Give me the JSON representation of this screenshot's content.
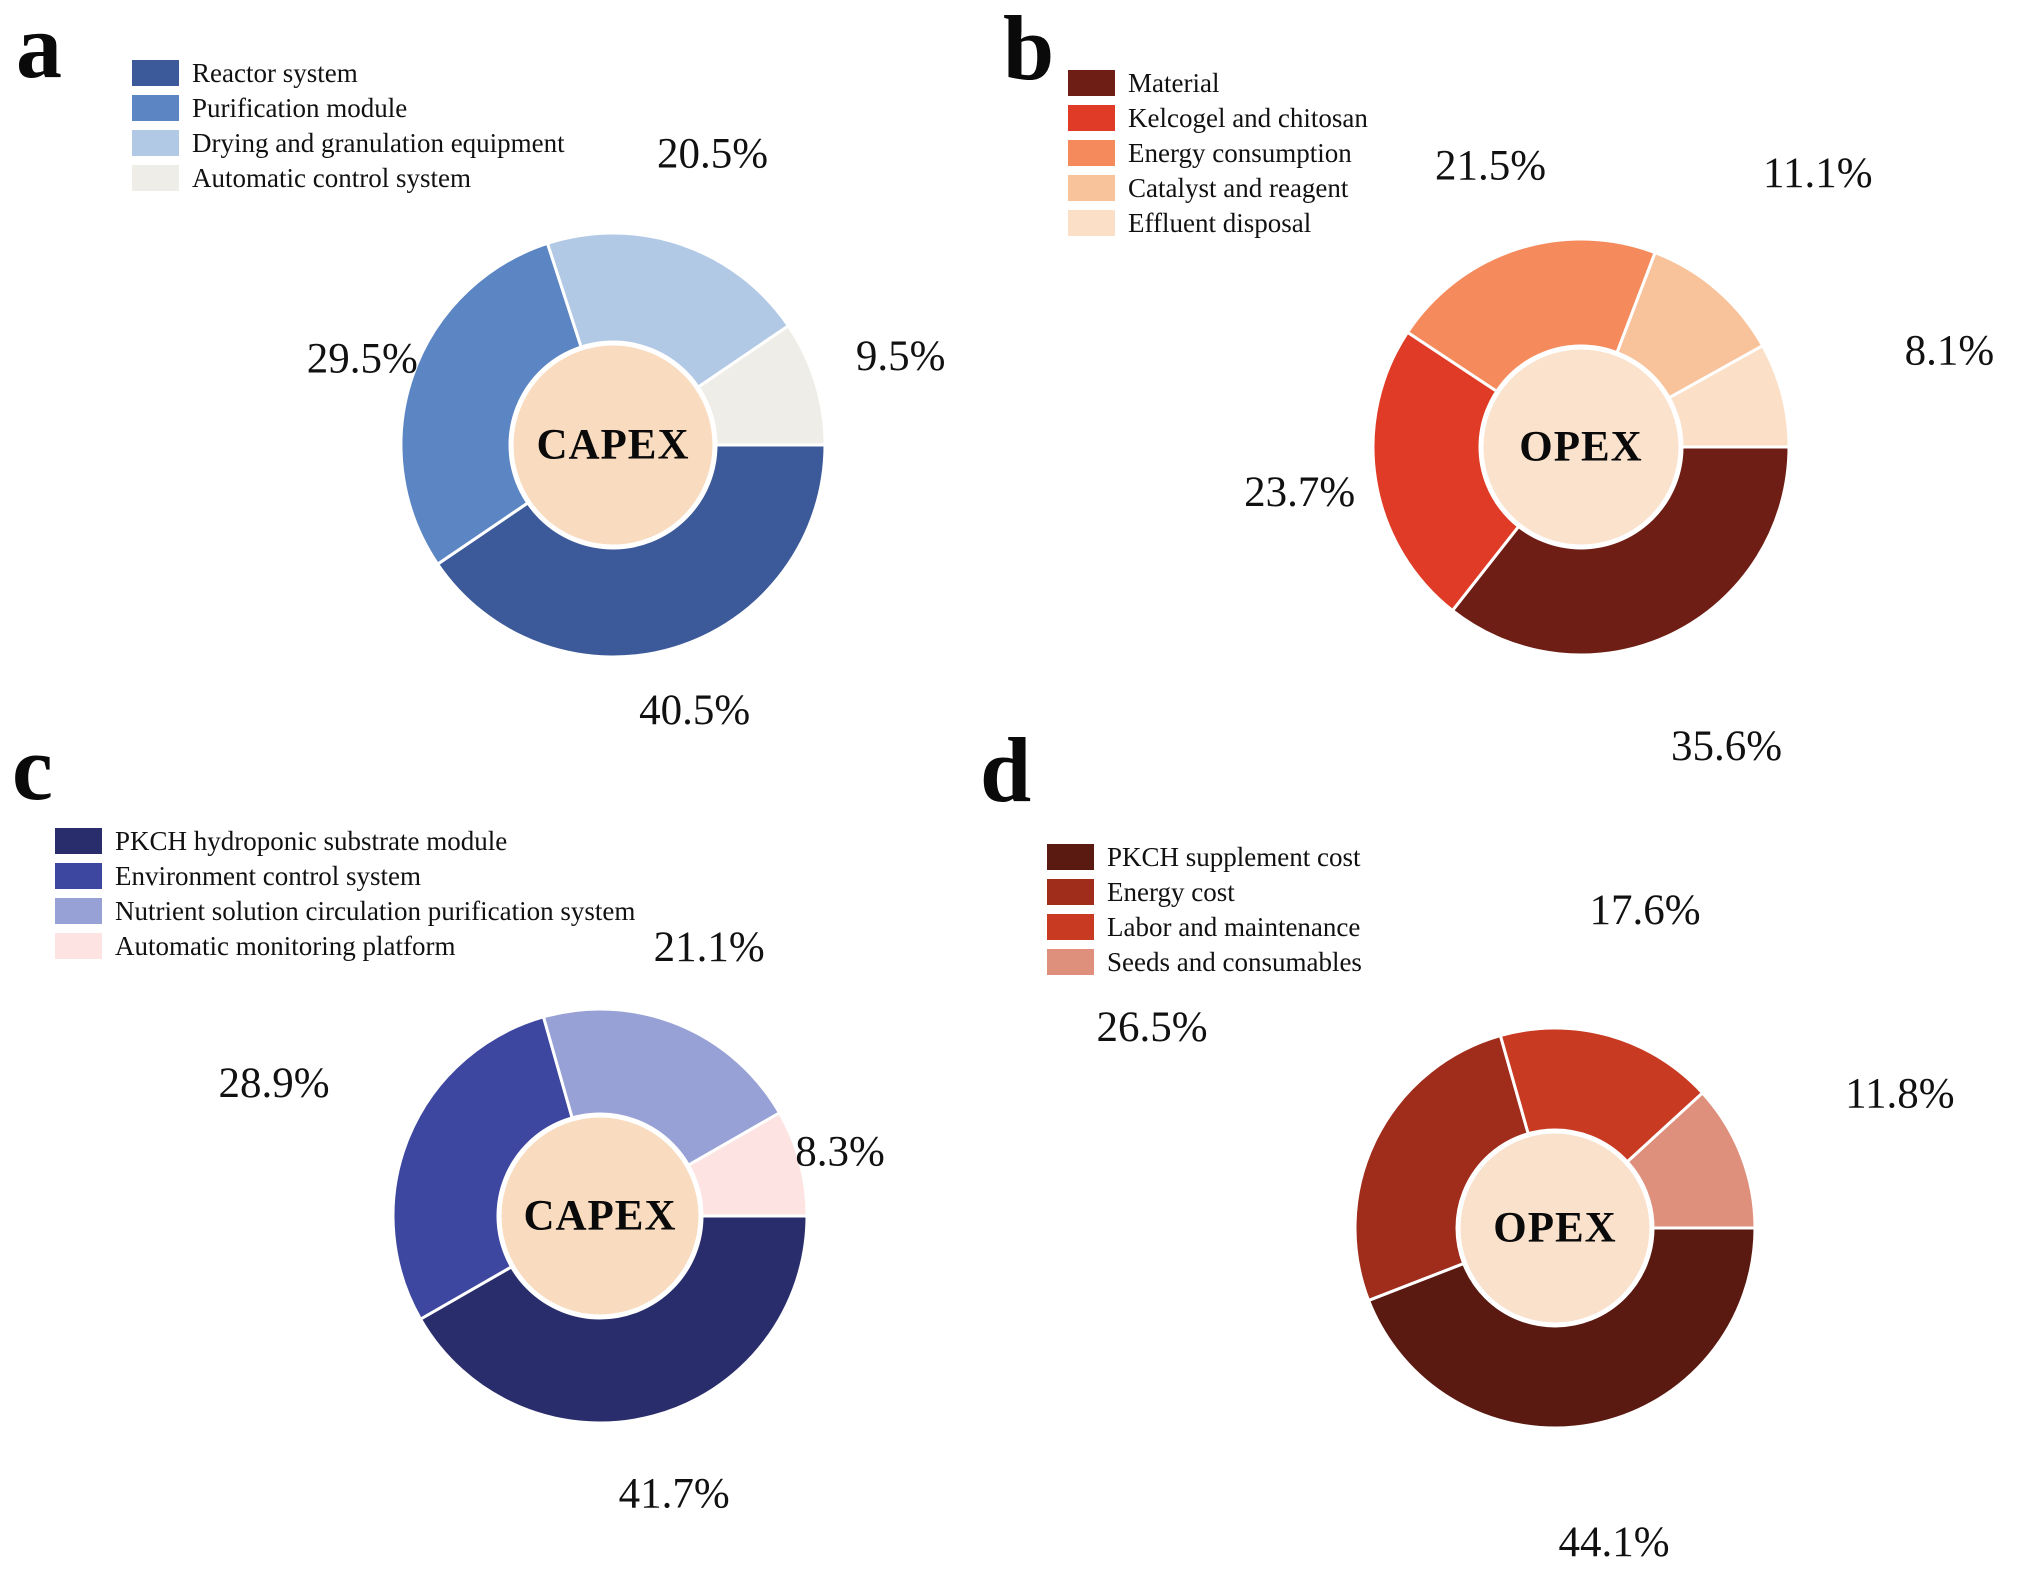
{
  "chart_data": [
    {
      "panel_letter": "a",
      "type": "donut",
      "center_label": "CAPEX",
      "center_color": "#F9DCBF",
      "direction": "clockwise",
      "start_angle_deg": 0,
      "legend_position": "top-left",
      "labels": [
        "Reactor system",
        "Purification module",
        "Drying and granulation equipment",
        "Automatic control system"
      ],
      "values": [
        40.5,
        29.5,
        20.5,
        9.5
      ],
      "pct_labels": [
        "40.5%",
        "29.5%",
        "20.5%",
        "9.5%"
      ],
      "colors": [
        "#3C5A99",
        "#5C85C3",
        "#B2C9E6",
        "#EFEDE7"
      ]
    },
    {
      "panel_letter": "b",
      "type": "donut",
      "center_label": "OPEX",
      "center_color": "#FBE2CD",
      "direction": "clockwise",
      "start_angle_deg": 0,
      "legend_position": "top-left",
      "labels": [
        "Material",
        "Kelcogel and chitosan",
        "Energy consumption",
        "Catalyst and reagent",
        "Effluent disposal"
      ],
      "values": [
        35.6,
        23.7,
        21.5,
        11.1,
        8.1
      ],
      "pct_labels": [
        "35.6%",
        "23.7%",
        "21.5%",
        "11.1%",
        "8.1%"
      ],
      "colors": [
        "#6E1E14",
        "#E03B26",
        "#F58B5C",
        "#F8C29A",
        "#FBDFC6"
      ]
    },
    {
      "panel_letter": "c",
      "type": "donut",
      "center_label": "CAPEX",
      "center_color": "#F9DCBF",
      "direction": "clockwise",
      "start_angle_deg": 0,
      "legend_position": "top-left",
      "labels": [
        "PKCH hydroponic substrate module",
        "Environment control system",
        "Nutrient solution circulation purification system",
        "Automatic monitoring platform"
      ],
      "values": [
        41.7,
        28.9,
        21.1,
        8.3
      ],
      "pct_labels": [
        "41.7%",
        "28.9%",
        "21.1%",
        "8.3%"
      ],
      "colors": [
        "#292D6B",
        "#3E47A0",
        "#98A1D5",
        "#FDE3E1"
      ]
    },
    {
      "panel_letter": "d",
      "type": "donut",
      "center_label": "OPEX",
      "center_color": "#FAE1CC",
      "direction": "clockwise",
      "start_angle_deg": 0,
      "legend_position": "top-left",
      "labels": [
        "PKCH supplement cost",
        "Energy cost",
        "Labor and maintenance",
        "Seeds and consumables"
      ],
      "values": [
        44.1,
        26.5,
        17.6,
        11.8
      ],
      "pct_labels": [
        "44.1%",
        "26.5%",
        "17.6%",
        "11.8%"
      ],
      "colors": [
        "#5B1A11",
        "#A02C1B",
        "#C93A23",
        "#DE907D"
      ]
    }
  ]
}
